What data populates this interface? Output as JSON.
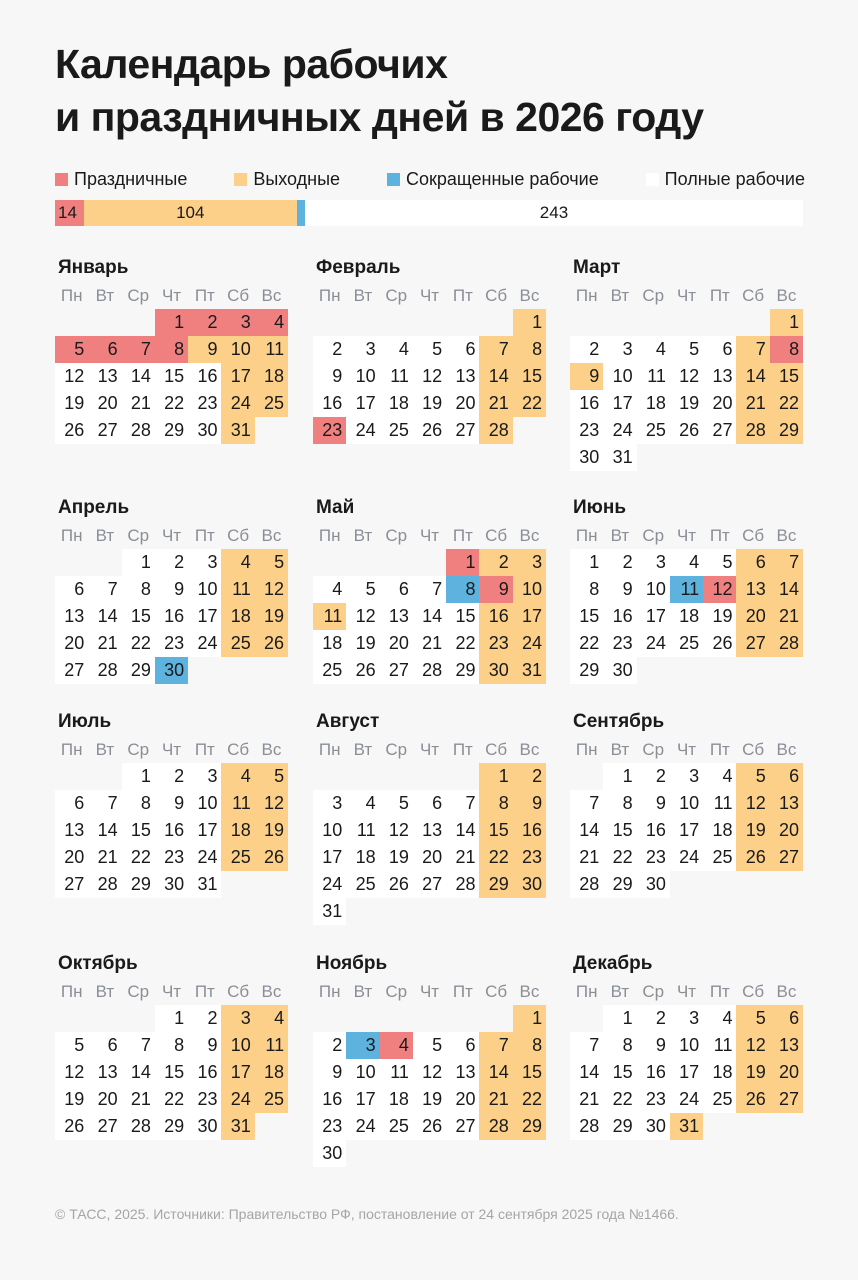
{
  "title_line1": "Календарь рабочих",
  "title_line2": "и праздничных дней в 2026 году",
  "year": 2026,
  "colors": {
    "holiday": "#f08080",
    "weekend": "#fdd08a",
    "short": "#5db3dd",
    "work": "#ffffff"
  },
  "legend": [
    {
      "label": "Праздничные",
      "type": "holiday",
      "count": 14
    },
    {
      "label": "Выходные",
      "type": "weekend",
      "count": 104
    },
    {
      "label": "Сокращенные рабочие",
      "type": "short",
      "count": 4
    },
    {
      "label": "Полные рабочие",
      "type": "work",
      "count": 243
    }
  ],
  "weekdays": [
    "Пн",
    "Вт",
    "Ср",
    "Чт",
    "Пт",
    "Сб",
    "Вс"
  ],
  "months": [
    {
      "name": "Январь",
      "holidays": [
        1,
        2,
        3,
        4,
        5,
        6,
        7,
        8
      ],
      "short": [],
      "extra_weekends": [
        9
      ],
      "extra_workdays": []
    },
    {
      "name": "Февраль",
      "holidays": [
        23
      ],
      "short": [],
      "extra_weekends": [],
      "extra_workdays": []
    },
    {
      "name": "Март",
      "holidays": [
        8
      ],
      "short": [],
      "extra_weekends": [
        9
      ],
      "extra_workdays": []
    },
    {
      "name": "Апрель",
      "holidays": [],
      "short": [
        30
      ],
      "extra_weekends": [],
      "extra_workdays": []
    },
    {
      "name": "Май",
      "holidays": [
        1,
        9
      ],
      "short": [
        8
      ],
      "extra_weekends": [
        11
      ],
      "extra_workdays": []
    },
    {
      "name": "Июнь",
      "holidays": [
        12
      ],
      "short": [
        11
      ],
      "extra_weekends": [],
      "extra_workdays": []
    },
    {
      "name": "Июль",
      "holidays": [],
      "short": [],
      "extra_weekends": [],
      "extra_workdays": []
    },
    {
      "name": "Август",
      "holidays": [],
      "short": [],
      "extra_weekends": [],
      "extra_workdays": []
    },
    {
      "name": "Сентябрь",
      "holidays": [],
      "short": [],
      "extra_weekends": [],
      "extra_workdays": []
    },
    {
      "name": "Октябрь",
      "holidays": [],
      "short": [],
      "extra_weekends": [],
      "extra_workdays": []
    },
    {
      "name": "Ноябрь",
      "holidays": [
        4
      ],
      "short": [
        3
      ],
      "extra_weekends": [],
      "extra_workdays": []
    },
    {
      "name": "Декабрь",
      "holidays": [],
      "short": [],
      "extra_weekends": [
        31
      ],
      "extra_workdays": []
    }
  ],
  "footer": "© ТАСС, 2025. Источники: Правительство РФ, постановление от 24 сентября 2025 года №1466."
}
